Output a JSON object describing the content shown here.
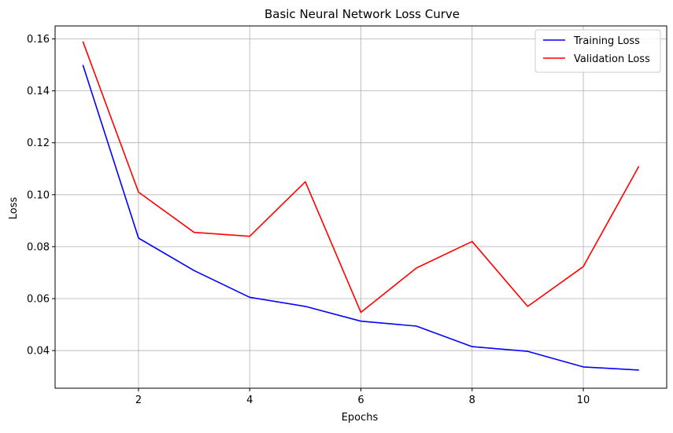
{
  "chart_data": {
    "type": "line",
    "title": "Basic Neural Network Loss Curve",
    "xlabel": "Epochs",
    "ylabel": "Loss",
    "xlim": [
      0.5,
      11.5
    ],
    "ylim": [
      0.0255,
      0.165
    ],
    "xticks": [
      2,
      4,
      6,
      8,
      10
    ],
    "yticks": [
      0.04,
      0.06,
      0.08,
      0.1,
      0.12,
      0.14,
      0.16
    ],
    "ytick_labels": [
      "0.04",
      "0.06",
      "0.08",
      "0.10",
      "0.12",
      "0.14",
      "0.16"
    ],
    "grid": true,
    "legend_position": "top-right",
    "x": [
      1,
      2,
      3,
      4,
      5,
      6,
      7,
      8,
      9,
      10,
      11
    ],
    "series": [
      {
        "name": "Training Loss",
        "color": "#0000ff",
        "values": [
          0.15,
          0.0833,
          0.0708,
          0.0605,
          0.057,
          0.0513,
          0.0494,
          0.0415,
          0.0397,
          0.0337,
          0.0325
        ]
      },
      {
        "name": "Validation Loss",
        "color": "#ff0000",
        "values": [
          0.159,
          0.101,
          0.0855,
          0.084,
          0.105,
          0.0547,
          0.0718,
          0.082,
          0.057,
          0.0723,
          0.111
        ]
      }
    ]
  }
}
